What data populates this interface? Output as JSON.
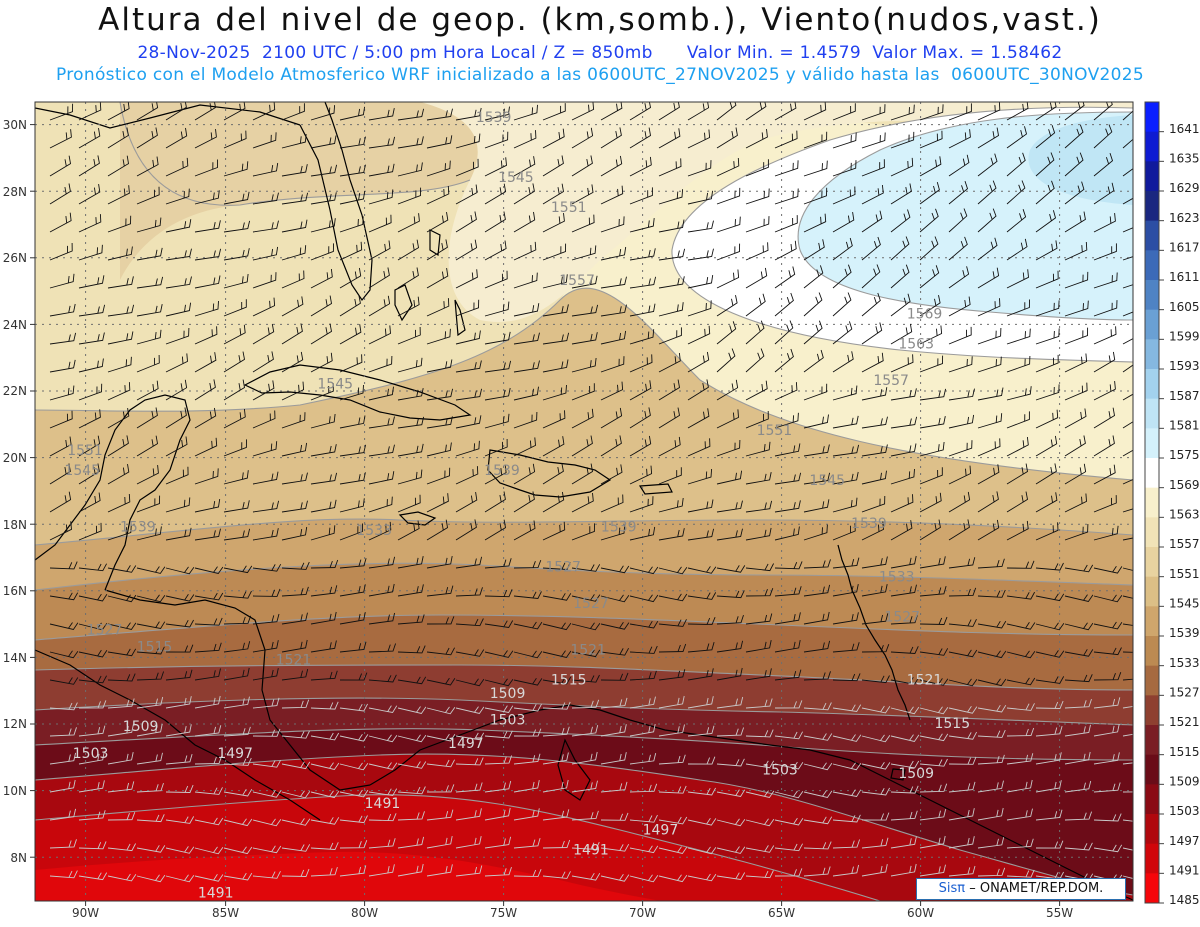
{
  "header": {
    "title": "Altura del nivel de geop. (km,somb.), Viento(nudos,vast.)",
    "date": "28-Nov-2025",
    "time": "2100 UTC / 5:00 pm Hora Local / Z = 850mb",
    "min": "Valor Min. = 1.4579",
    "max": "Valor Max. = 1.58462",
    "subtitle": "Pronóstico con el Modelo Atmosferico WRF inicializado a las 0600UTC_27NOV2025 y válido hasta las  0600UTC_30NOV2025"
  },
  "map": {
    "lon_range": [
      -92,
      -52.5
    ],
    "lat_range": [
      6.8,
      30.8
    ],
    "lon_ticks": [
      "90W",
      "85W",
      "80W",
      "75W",
      "70W",
      "65W",
      "60W",
      "55W"
    ],
    "lat_ticks": [
      "30N",
      "28N",
      "26N",
      "24N",
      "22N",
      "20N",
      "18N",
      "16N",
      "14N",
      "12N",
      "10N",
      "8N"
    ],
    "contour_labels": [
      {
        "text": "1539",
        "lon": -75.5,
        "lat": 30.2
      },
      {
        "text": "1545",
        "lon": -74.7,
        "lat": 28.4
      },
      {
        "text": "1551",
        "lon": -72.8,
        "lat": 27.5
      },
      {
        "text": "1557",
        "lon": -72.5,
        "lat": 25.3
      },
      {
        "text": "1569",
        "lon": -60.0,
        "lat": 24.3
      },
      {
        "text": "1563",
        "lon": -60.3,
        "lat": 23.4
      },
      {
        "text": "1557",
        "lon": -61.2,
        "lat": 22.3
      },
      {
        "text": "1545",
        "lon": -81.2,
        "lat": 22.2
      },
      {
        "text": "1551",
        "lon": -90.2,
        "lat": 20.2
      },
      {
        "text": "1545",
        "lon": -90.3,
        "lat": 19.6
      },
      {
        "text": "1551",
        "lon": -65.4,
        "lat": 20.8
      },
      {
        "text": "1539",
        "lon": -75.2,
        "lat": 19.6
      },
      {
        "text": "1545",
        "lon": -63.5,
        "lat": 19.3
      },
      {
        "text": "1539",
        "lon": -62.0,
        "lat": 18.0
      },
      {
        "text": "1539",
        "lon": -71.0,
        "lat": 17.9
      },
      {
        "text": "1533",
        "lon": -79.8,
        "lat": 17.8
      },
      {
        "text": "1539",
        "lon": -88.3,
        "lat": 17.9
      },
      {
        "text": "1527",
        "lon": -73.0,
        "lat": 16.7
      },
      {
        "text": "1533",
        "lon": -61.0,
        "lat": 16.4
      },
      {
        "text": "1527",
        "lon": -72.0,
        "lat": 15.6
      },
      {
        "text": "1527",
        "lon": -60.8,
        "lat": 15.2
      },
      {
        "text": "1527",
        "lon": -89.5,
        "lat": 14.8
      },
      {
        "text": "1515",
        "lon": -87.7,
        "lat": 14.3
      },
      {
        "text": "1521",
        "lon": -82.7,
        "lat": 13.9
      },
      {
        "text": "1521",
        "lon": -72.1,
        "lat": 14.2
      },
      {
        "text": "1521",
        "lon": -60.0,
        "lat": 13.3
      },
      {
        "text": "1509",
        "lon": -75.0,
        "lat": 12.9
      },
      {
        "text": "1515",
        "lon": -72.8,
        "lat": 13.3
      },
      {
        "text": "1503",
        "lon": -75.0,
        "lat": 12.1
      },
      {
        "text": "1515",
        "lon": -59.0,
        "lat": 12.0
      },
      {
        "text": "1509",
        "lon": -88.2,
        "lat": 11.9
      },
      {
        "text": "1503",
        "lon": -90.0,
        "lat": 11.1
      },
      {
        "text": "1497",
        "lon": -84.8,
        "lat": 11.1
      },
      {
        "text": "1497",
        "lon": -76.5,
        "lat": 11.4
      },
      {
        "text": "1503",
        "lon": -65.2,
        "lat": 10.6
      },
      {
        "text": "1509",
        "lon": -60.3,
        "lat": 10.5
      },
      {
        "text": "1491",
        "lon": -79.5,
        "lat": 9.6
      },
      {
        "text": "1497",
        "lon": -69.5,
        "lat": 8.8
      },
      {
        "text": "1491",
        "lon": -72.0,
        "lat": 8.2
      },
      {
        "text": "1491",
        "lon": -85.5,
        "lat": 6.9
      }
    ]
  },
  "legend": {
    "labels": [
      "1641",
      "1635",
      "1629",
      "1623",
      "1617",
      "1611",
      "1605",
      "1599",
      "1593",
      "1587",
      "1581",
      "1575",
      "1569",
      "1563",
      "1557",
      "1551",
      "1545",
      "1539",
      "1533",
      "1527",
      "1521",
      "1515",
      "1509",
      "1503",
      "1497",
      "1491",
      "1485"
    ],
    "colors": [
      "#0a1fff",
      "#0e1bd2",
      "#101a9c",
      "#1a2780",
      "#2c4ea4",
      "#3c6ab8",
      "#4f83c4",
      "#6aa0d4",
      "#85b8e0",
      "#a3d2ee",
      "#bfe4f5",
      "#d4f1fb",
      "#ffffff",
      "#f8f0cc",
      "#f1e3b7",
      "#e8d3a0",
      "#dcbf86",
      "#cfa66c",
      "#bc8a52",
      "#a66a40",
      "#8e4030",
      "#7a1e24",
      "#6a0c18",
      "#8a0a14",
      "#b0080e",
      "#d0060a",
      "#f5060a"
    ]
  },
  "credit": {
    "brand": "Sisπ",
    "text": "– ONAMET/REP.DOM."
  }
}
